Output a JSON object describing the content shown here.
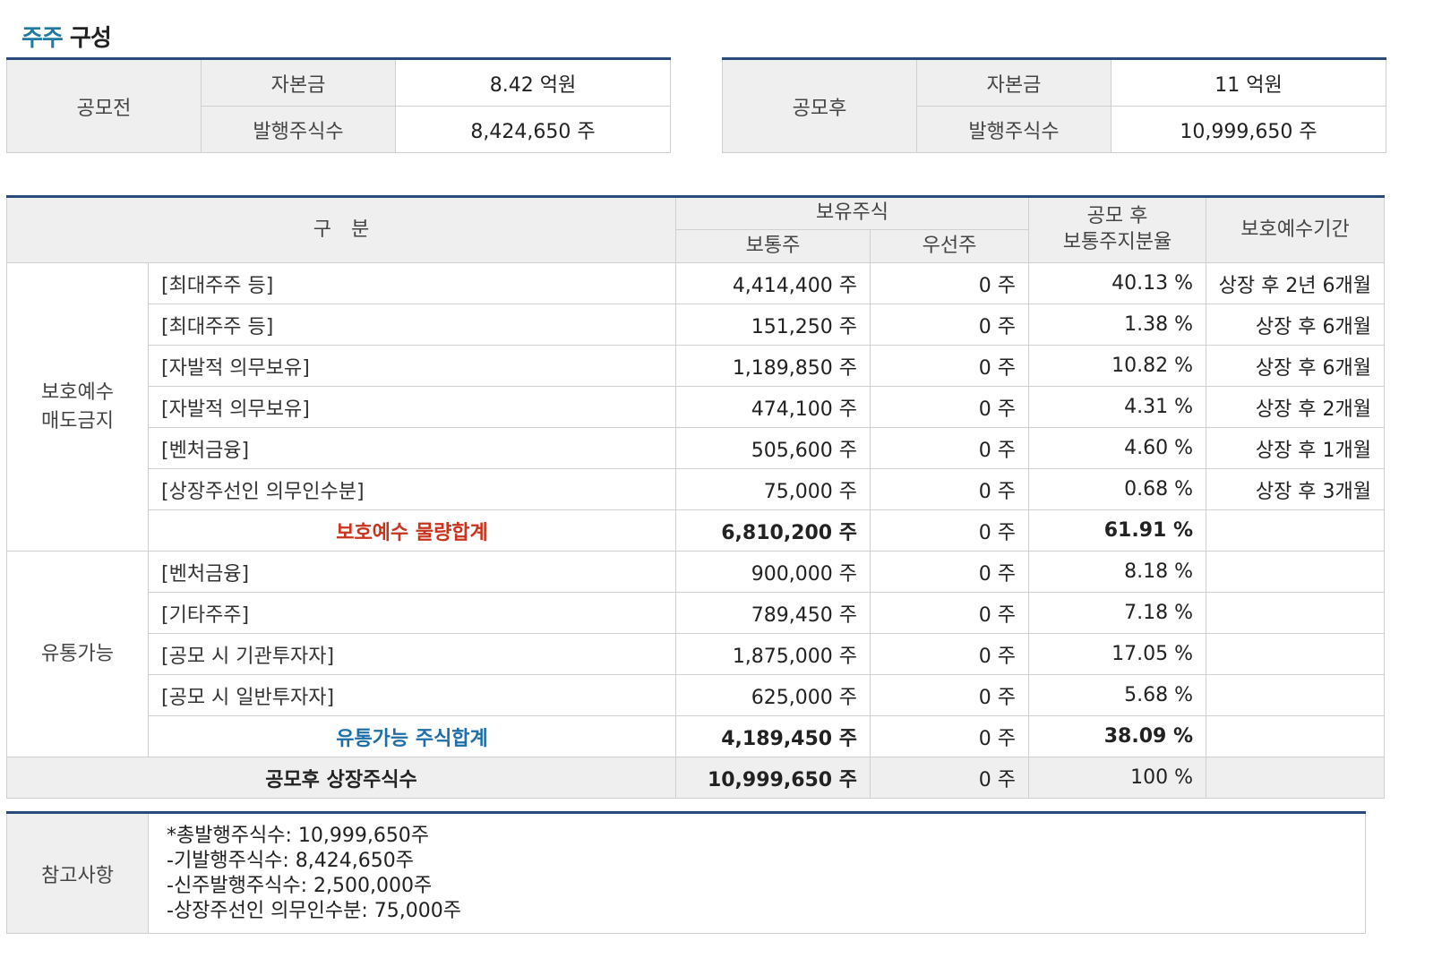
{
  "section_title": {
    "accent": "주주",
    "rest": " 구성"
  },
  "capital_before": {
    "label": "공모전",
    "capital_label": "자본금",
    "capital_value": "8.42 억원",
    "shares_label": "발행주식수",
    "shares_value": "8,424,650 주"
  },
  "capital_after": {
    "label": "공모후",
    "capital_label": "자본금",
    "capital_value": "11 억원",
    "shares_label": "발행주식수",
    "shares_value": "10,999,650 주"
  },
  "holdings": {
    "headers": {
      "category": "구　분",
      "held": "보유주식",
      "common": "보통주",
      "preferred": "우선주",
      "ratio_line1": "공모 후",
      "ratio_line2": "보통주지분율",
      "lockup": "보호예수기간"
    },
    "lockup_group": {
      "label_line1": "보호예수",
      "label_line2": "매도금지",
      "rows": [
        {
          "label": "[최대주주 등]",
          "common": "4,414,400 주",
          "preferred": "0 주",
          "ratio": "40.13 %",
          "period": "상장 후 2년 6개월"
        },
        {
          "label": "[최대주주 등]",
          "common": "151,250 주",
          "preferred": "0 주",
          "ratio": "1.38 %",
          "period": "상장 후 6개월"
        },
        {
          "label": "[자발적 의무보유]",
          "common": "1,189,850 주",
          "preferred": "0 주",
          "ratio": "10.82 %",
          "period": "상장 후 6개월"
        },
        {
          "label": "[자발적 의무보유]",
          "common": "474,100 주",
          "preferred": "0 주",
          "ratio": "4.31 %",
          "period": "상장 후 2개월"
        },
        {
          "label": "[벤처금융]",
          "common": "505,600 주",
          "preferred": "0 주",
          "ratio": "4.60 %",
          "period": "상장 후 1개월"
        },
        {
          "label": "[상장주선인 의무인수분]",
          "common": "75,000 주",
          "preferred": "0 주",
          "ratio": "0.68 %",
          "period": "상장 후 3개월"
        }
      ],
      "subtotal": {
        "label": "보호예수 물량합계",
        "common": "6,810,200 주",
        "preferred": "0 주",
        "ratio": "61.91 %"
      }
    },
    "tradable_group": {
      "label": "유통가능",
      "rows": [
        {
          "label": "[벤처금융]",
          "common": "900,000 주",
          "preferred": "0 주",
          "ratio": "8.18 %"
        },
        {
          "label": "[기타주주]",
          "common": "789,450 주",
          "preferred": "0 주",
          "ratio": "7.18 %"
        },
        {
          "label": "[공모 시 기관투자자]",
          "common": "1,875,000 주",
          "preferred": "0 주",
          "ratio": "17.05 %"
        },
        {
          "label": "[공모 시 일반투자자]",
          "common": "625,000 주",
          "preferred": "0 주",
          "ratio": "5.68 %"
        }
      ],
      "subtotal": {
        "label": "유통가능 주식합계",
        "common": "4,189,450 주",
        "preferred": "0 주",
        "ratio": "38.09 %"
      }
    },
    "total": {
      "label": "공모후 상장주식수",
      "common": "10,999,650 주",
      "preferred": "0 주",
      "ratio": "100 %"
    }
  },
  "notes": {
    "label": "참고사항",
    "lines": [
      "*총발행주식수: 10,999,650주",
      "-기발행주식수: 8,424,650주",
      "-신주발행주식수: 2,500,000주",
      "-상장주선인 의무인수분: 75,000주"
    ]
  },
  "colors": {
    "header_rule": "#2a4a7c",
    "title_accent": "#1e7aa0",
    "subtotal_red": "#c8341d",
    "subtotal_blue": "#1e6fa8",
    "header_bg": "#efefef"
  }
}
